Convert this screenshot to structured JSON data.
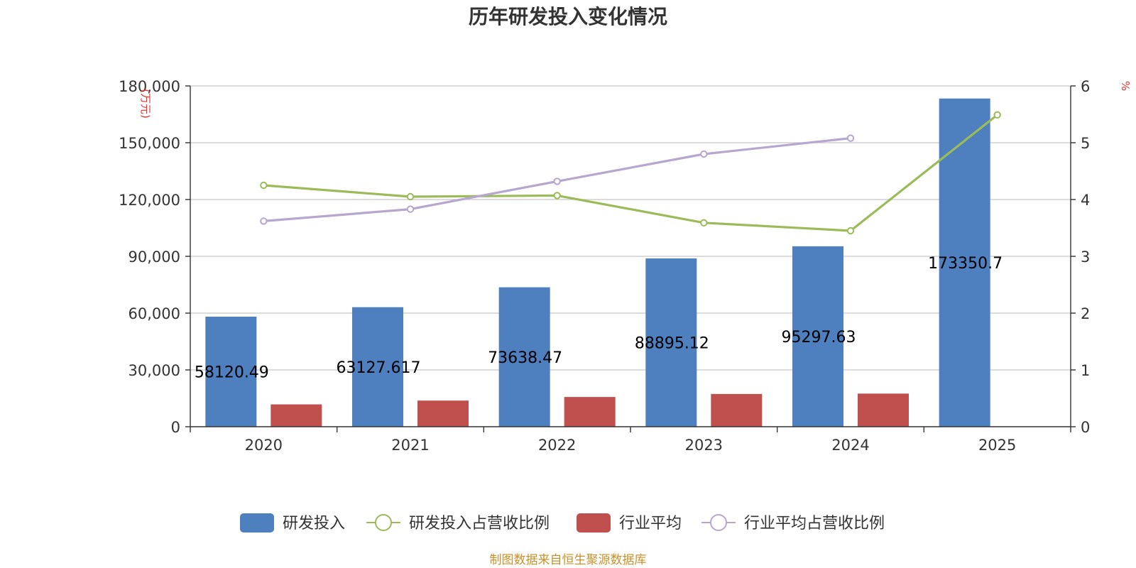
{
  "title": "历年研发投入变化情况",
  "source_note": "制图数据来自恒生聚源数据库",
  "chart_data": {
    "type": "bar",
    "categories": [
      "2020",
      "2021",
      "2022",
      "2023",
      "2024",
      "2025"
    ],
    "y_left": {
      "unit": "万元",
      "ylim": [
        0,
        180000
      ],
      "ticks": [
        0,
        30000,
        60000,
        90000,
        120000,
        150000,
        180000
      ],
      "tick_labels": [
        "0",
        "30,000",
        "60,000",
        "90,000",
        "120,000",
        "150,000",
        "180,000"
      ]
    },
    "y_right": {
      "unit": "%",
      "ylim": [
        0,
        6
      ],
      "ticks": [
        0,
        1,
        2,
        3,
        4,
        5,
        6
      ],
      "tick_labels": [
        "0",
        "1",
        "2",
        "3",
        "4",
        "5",
        "6"
      ]
    },
    "grid": true,
    "legend_position": "bottom",
    "series": [
      {
        "name": "研发投入",
        "type": "bar",
        "axis": "left",
        "color": "#4e7fbf",
        "values": [
          58120.49,
          63127.617,
          73638.47,
          88895.12,
          95297.63,
          173350.7
        ],
        "labels": [
          "58120.49",
          "63127.617",
          "73638.47",
          "88895.12",
          "95297.63",
          "173350.7"
        ]
      },
      {
        "name": "研发投入占营收比例",
        "type": "line",
        "axis": "right",
        "color": "#9bbb59",
        "values": [
          4.25,
          4.05,
          4.07,
          3.59,
          3.45,
          5.49
        ]
      },
      {
        "name": "行业平均",
        "type": "bar",
        "axis": "left",
        "color": "#c0504d",
        "values": [
          11800,
          13800,
          15700,
          17300,
          17500,
          null
        ]
      },
      {
        "name": "行业平均占营收比例",
        "type": "line",
        "axis": "right",
        "color": "#b7a6ce",
        "values": [
          3.62,
          3.83,
          4.32,
          4.8,
          5.08,
          null
        ]
      }
    ]
  }
}
